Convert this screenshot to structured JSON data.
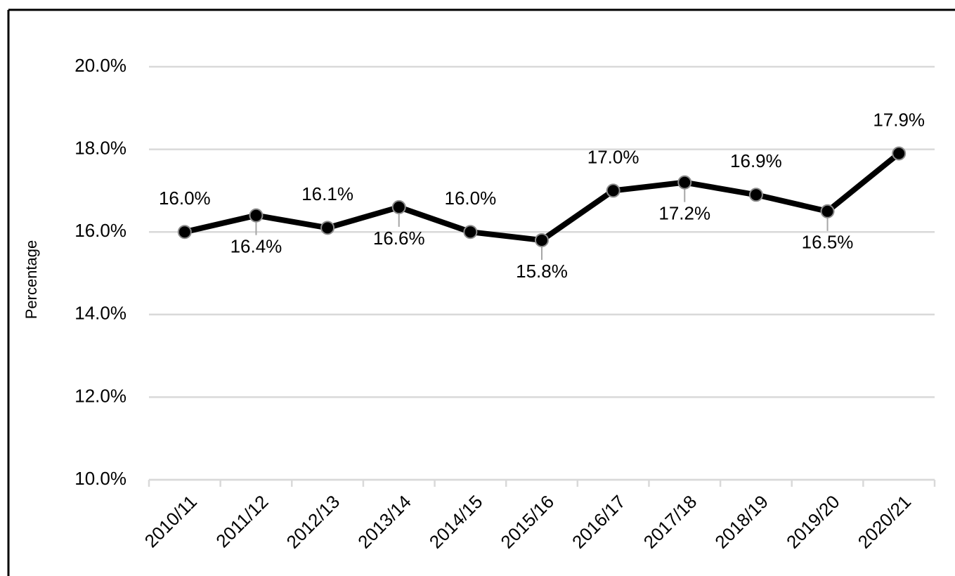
{
  "chart_data": {
    "type": "line",
    "ylabel": "Percentage",
    "categories": [
      "2010/11",
      "2011/12",
      "2012/13",
      "2013/14",
      "2014/15",
      "2015/16",
      "2016/17",
      "2017/18",
      "2018/19",
      "2019/20",
      "2020/21"
    ],
    "values": [
      16.0,
      16.4,
      16.1,
      16.6,
      16.0,
      15.8,
      17.0,
      17.2,
      16.9,
      16.5,
      17.9
    ],
    "value_labels": [
      "16.0%",
      "16.4%",
      "16.1%",
      "16.6%",
      "16.0%",
      "15.8%",
      "17.0%",
      "17.2%",
      "16.9%",
      "16.5%",
      "17.9%"
    ],
    "color": "#000000",
    "ylim": [
      10,
      20
    ],
    "yticks": [
      {
        "value": 10,
        "label": "10.0%"
      },
      {
        "value": 12,
        "label": "12.0%"
      },
      {
        "value": 14,
        "label": "14.0%"
      },
      {
        "value": 16,
        "label": "16.0%"
      },
      {
        "value": 18,
        "label": "18.0%"
      },
      {
        "value": 20,
        "label": "20.0%"
      }
    ],
    "grid": true
  }
}
